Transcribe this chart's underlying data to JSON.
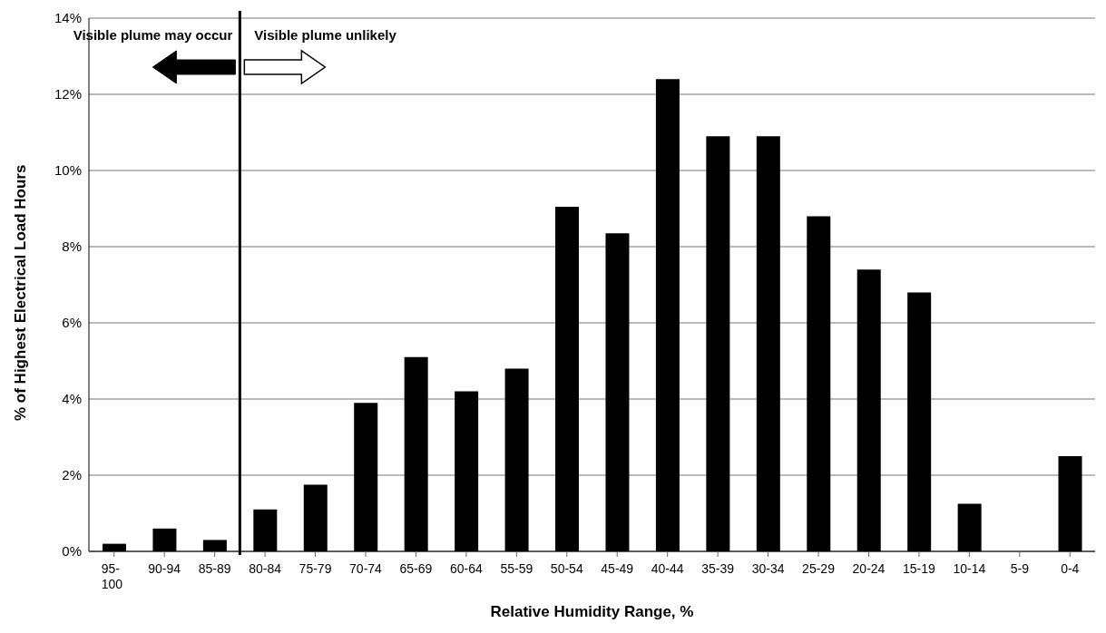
{
  "chart_data": {
    "type": "bar",
    "xlabel": "Relative Humidity Range, %",
    "ylabel": "% of Highest Electrical Load Hours",
    "categories": [
      "95-100",
      "90-94",
      "85-89",
      "80-84",
      "75-79",
      "70-74",
      "65-69",
      "60-64",
      "55-59",
      "50-54",
      "45-49",
      "40-44",
      "35-39",
      "30-34",
      "25-29",
      "20-24",
      "15-19",
      "10-14",
      "5-9",
      "0-4"
    ],
    "values": [
      0.2,
      0.6,
      0.3,
      1.1,
      1.75,
      3.9,
      5.1,
      4.2,
      4.8,
      9.05,
      8.35,
      12.4,
      10.9,
      10.9,
      8.8,
      7.4,
      6.8,
      1.25,
      0,
      2.5
    ],
    "color": "#000000",
    "ylim": [
      0,
      14
    ],
    "yticks": [
      {
        "value": 0,
        "label": "0%"
      },
      {
        "value": 2,
        "label": "2%"
      },
      {
        "value": 4,
        "label": "4%"
      },
      {
        "value": 6,
        "label": "6%"
      },
      {
        "value": 8,
        "label": "8%"
      },
      {
        "value": 10,
        "label": "10%"
      },
      {
        "value": 12,
        "label": "12%"
      },
      {
        "value": 14,
        "label": "14%"
      }
    ],
    "grid": "y",
    "ref_lines": [
      {
        "axis": "x",
        "value": "80-84",
        "color": "#000000"
      }
    ],
    "annotations": [
      "Visible plume may occur",
      "Visible plume unlikely"
    ]
  }
}
